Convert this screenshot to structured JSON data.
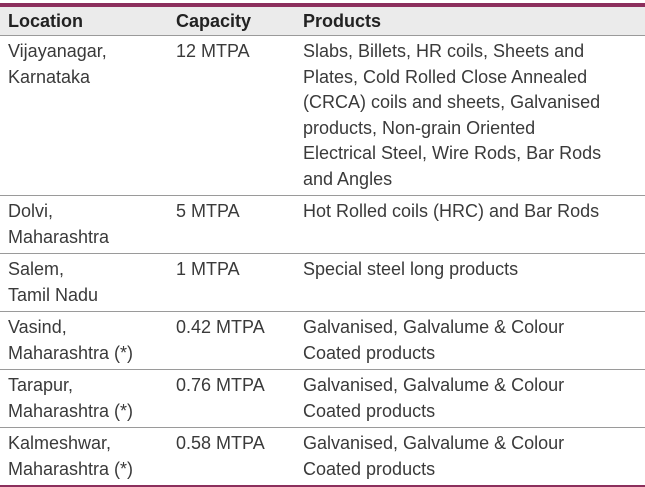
{
  "table": {
    "headers": [
      "Location",
      "Capacity",
      "Products"
    ],
    "rows": [
      [
        [
          "Vijayanagar,",
          "Karnataka"
        ],
        [
          "12 MTPA"
        ],
        [
          "Slabs, Billets, HR coils, Sheets and",
          "Plates, Cold Rolled Close Annealed",
          "(CRCA) coils and sheets, Galvanised",
          "products, Non-grain Oriented",
          "Electrical Steel, Wire Rods, Bar Rods",
          "and Angles"
        ]
      ],
      [
        [
          "Dolvi,",
          "Maharashtra"
        ],
        [
          "5 MTPA"
        ],
        [
          "Hot Rolled coils (HRC) and Bar Rods"
        ]
      ],
      [
        [
          "Salem,",
          "Tamil Nadu"
        ],
        [
          "1 MTPA"
        ],
        [
          "Special steel long products"
        ]
      ],
      [
        [
          "Vasind,",
          "Maharashtra (*)"
        ],
        [
          "0.42 MTPA"
        ],
        [
          "Galvanised, Galvalume & Colour",
          "Coated products"
        ]
      ],
      [
        [
          "Tarapur,",
          "Maharashtra (*)"
        ],
        [
          "0.76 MTPA"
        ],
        [
          "Galvanised, Galvalume & Colour",
          "Coated products"
        ]
      ],
      [
        [
          "Kalmeshwar,",
          "Maharashtra (*)"
        ],
        [
          "0.58 MTPA"
        ],
        [
          "Galvanised, Galvalume & Colour",
          "Coated products"
        ]
      ]
    ]
  }
}
